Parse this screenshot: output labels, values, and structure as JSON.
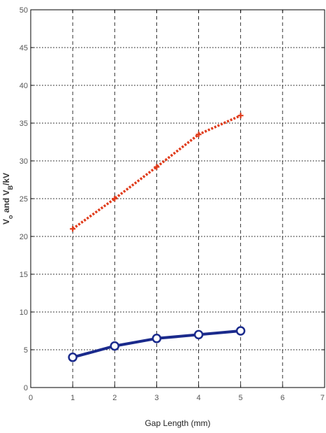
{
  "chart_data": {
    "type": "line",
    "title": "",
    "xlabel": "Gap Length (mm)",
    "ylabel": {
      "parts": [
        {
          "text": "V",
          "sub": false
        },
        {
          "text": "o",
          "sub": true
        },
        {
          "text": " and V",
          "sub": false
        },
        {
          "text": "B",
          "sub": true
        },
        {
          "text": "/kV",
          "sub": false
        }
      ]
    },
    "xlim": [
      0,
      7
    ],
    "ylim": [
      0,
      50
    ],
    "xticks": [
      0,
      1,
      2,
      3,
      4,
      5,
      6,
      7
    ],
    "yticks": [
      0,
      5,
      10,
      15,
      20,
      25,
      30,
      35,
      40,
      45,
      50
    ],
    "grid": true,
    "series": [
      {
        "x": [
          1,
          2,
          3,
          4,
          5
        ],
        "y": [
          21,
          25,
          29.2,
          33.5,
          36
        ],
        "color": "#e03c1c",
        "line_style": "dotted",
        "marker": "plus"
      },
      {
        "x": [
          1,
          2,
          3,
          4,
          5
        ],
        "y": [
          4,
          5.5,
          6.5,
          7,
          7.5
        ],
        "color": "#1a2a8c",
        "line_style": "solid",
        "marker": "circle"
      }
    ]
  }
}
